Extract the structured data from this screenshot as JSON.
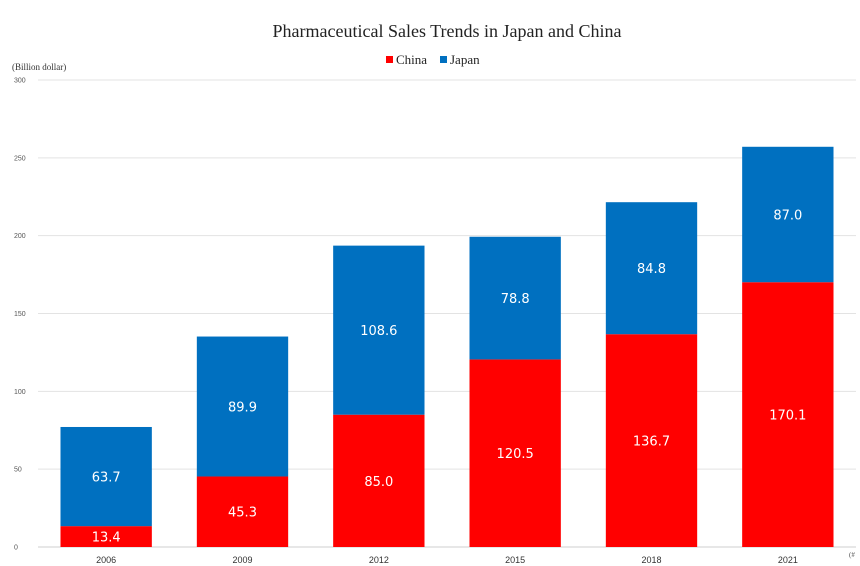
{
  "chart_data": {
    "type": "bar",
    "stacked": true,
    "title": "Pharmaceutical Sales Trends in Japan and China",
    "ylabel": "(Billion dollar)",
    "xlabel_fragment": "(#",
    "categories": [
      "2006",
      "2009",
      "2012",
      "2015",
      "2018",
      "2021"
    ],
    "series": [
      {
        "name": "China",
        "color": "#ff0000",
        "values": [
          13.4,
          45.3,
          85.0,
          120.5,
          136.7,
          170.1
        ],
        "labels": [
          "13.4",
          "45.3",
          "85.0",
          "120.5",
          "136.7",
          "170.1"
        ]
      },
      {
        "name": "Japan",
        "color": "#0070c0",
        "values": [
          63.7,
          89.9,
          108.6,
          78.8,
          84.8,
          87.0
        ],
        "labels": [
          "63.7",
          "89.9",
          "108.6",
          "78.8",
          "84.8",
          "87.0"
        ]
      }
    ],
    "ylim": [
      0,
      300
    ],
    "yticks": [
      0,
      50,
      100,
      150,
      200,
      250,
      300
    ],
    "yticks_labels": [
      "0",
      "50",
      "100",
      "150",
      "200",
      "250",
      "300"
    ],
    "grid": true,
    "legend_position": "top-center"
  }
}
